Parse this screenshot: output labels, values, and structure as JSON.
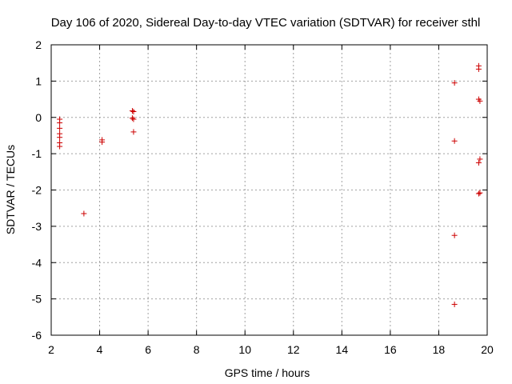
{
  "chart_data": {
    "type": "scatter",
    "title": "Day 106 of 2020, Sidereal Day-to-day VTEC variation (SDTVAR) for receiver sthl",
    "xlabel": "GPS time / hours",
    "ylabel": "SDTVAR / TECUs",
    "xlim": [
      2,
      20
    ],
    "ylim": [
      -6,
      2
    ],
    "xticks": [
      2,
      4,
      6,
      8,
      10,
      12,
      14,
      16,
      18,
      20
    ],
    "yticks": [
      2,
      1,
      0,
      -1,
      -2,
      -3,
      -4,
      -5,
      -6
    ],
    "grid": true,
    "marker": "+",
    "color": "#cc0000",
    "points": [
      {
        "x": 2.35,
        "y": -0.05
      },
      {
        "x": 2.35,
        "y": -0.15
      },
      {
        "x": 2.35,
        "y": -0.3
      },
      {
        "x": 2.35,
        "y": -0.45
      },
      {
        "x": 2.35,
        "y": -0.55
      },
      {
        "x": 2.35,
        "y": -0.7
      },
      {
        "x": 2.35,
        "y": -0.8
      },
      {
        "x": 3.35,
        "y": -2.65
      },
      {
        "x": 4.1,
        "y": -0.62
      },
      {
        "x": 4.1,
        "y": -0.68
      },
      {
        "x": 5.35,
        "y": 0.18
      },
      {
        "x": 5.4,
        "y": 0.16
      },
      {
        "x": 5.35,
        "y": -0.02
      },
      {
        "x": 5.4,
        "y": -0.05
      },
      {
        "x": 5.4,
        "y": -0.4
      },
      {
        "x": 18.65,
        "y": 0.95
      },
      {
        "x": 18.65,
        "y": -0.65
      },
      {
        "x": 18.65,
        "y": -3.25
      },
      {
        "x": 18.65,
        "y": -5.15
      },
      {
        "x": 19.65,
        "y": 1.42
      },
      {
        "x": 19.65,
        "y": 1.33
      },
      {
        "x": 19.65,
        "y": 0.5
      },
      {
        "x": 19.7,
        "y": 0.45
      },
      {
        "x": 19.7,
        "y": -1.15
      },
      {
        "x": 19.65,
        "y": -1.25
      },
      {
        "x": 19.65,
        "y": -2.1
      },
      {
        "x": 19.7,
        "y": -2.08
      }
    ]
  }
}
